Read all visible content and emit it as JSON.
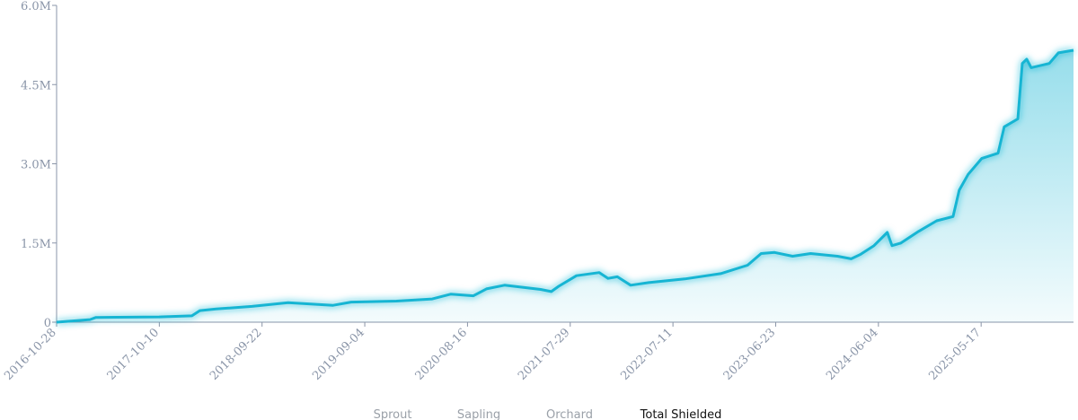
{
  "chart_data": {
    "type": "area",
    "x": [
      "2016-10-28",
      "2017-02-18",
      "2017-03-10",
      "2017-10-10",
      "2018-01-28",
      "2018-02-24",
      "2018-04-20",
      "2018-08-19",
      "2018-12-19",
      "2019-05-20",
      "2019-07-20",
      "2019-12-20",
      "2020-04-19",
      "2020-06-20",
      "2020-09-05",
      "2020-10-19",
      "2020-12-19",
      "2021-04-20",
      "2021-05-26",
      "2021-06-20",
      "2021-08-19",
      "2021-11-04",
      "2021-12-04",
      "2022-01-04",
      "2022-02-18",
      "2022-04-20",
      "2022-08-20",
      "2022-12-19",
      "2023-03-20",
      "2023-05-05",
      "2023-06-19",
      "2023-08-19",
      "2023-10-19",
      "2024-01-18",
      "2024-03-04",
      "2024-04-03",
      "2024-05-20",
      "2024-07-04",
      "2024-07-20",
      "2024-08-19",
      "2024-10-18",
      "2024-12-18",
      "2025-02-11",
      "2025-03-04",
      "2025-04-03",
      "2025-05-19",
      "2025-07-13",
      "2025-08-03",
      "2025-09-18",
      "2025-10-03",
      "2025-10-18",
      "2025-11-02",
      "2026-01-02",
      "2026-02-02",
      "2026-03-25"
    ],
    "series": [
      {
        "name": "Total Shielded",
        "color": "#17b5d3",
        "values": [
          0,
          50000,
          90000,
          100000,
          120000,
          220000,
          250000,
          300000,
          370000,
          320000,
          380000,
          400000,
          440000,
          530000,
          500000,
          630000,
          700000,
          620000,
          580000,
          680000,
          880000,
          940000,
          830000,
          860000,
          700000,
          750000,
          820000,
          920000,
          1080000,
          1300000,
          1320000,
          1250000,
          1300000,
          1250000,
          1200000,
          1280000,
          1450000,
          1700000,
          1450000,
          1500000,
          1720000,
          1920000,
          2000000,
          2500000,
          2800000,
          3100000,
          3200000,
          3700000,
          3850000,
          4900000,
          4980000,
          4820000,
          4900000,
          5100000,
          5150000
        ]
      }
    ],
    "xlim": [
      "2016-10-28",
      "2026-03-25"
    ],
    "xticks": [
      "2016-10-28",
      "2017-10-10",
      "2018-09-22",
      "2019-09-04",
      "2020-08-16",
      "2021-07-29",
      "2022-07-11",
      "2023-06-23",
      "2024-06-04",
      "2025-05-17"
    ],
    "ylim": [
      0,
      6000000
    ],
    "yticks": [
      0,
      {
        "value": 1500000,
        "label": "1.5M"
      },
      {
        "value": 3000000,
        "label": "3.0M"
      },
      {
        "value": 4500000,
        "label": "4.5M"
      },
      {
        "value": 6000000,
        "label": "6.0M"
      }
    ],
    "legend": [
      {
        "name": "Sprout",
        "active": false
      },
      {
        "name": "Sapling",
        "active": false
      },
      {
        "name": "Orchard",
        "active": false
      },
      {
        "name": "Total Shielded",
        "active": true
      }
    ]
  }
}
